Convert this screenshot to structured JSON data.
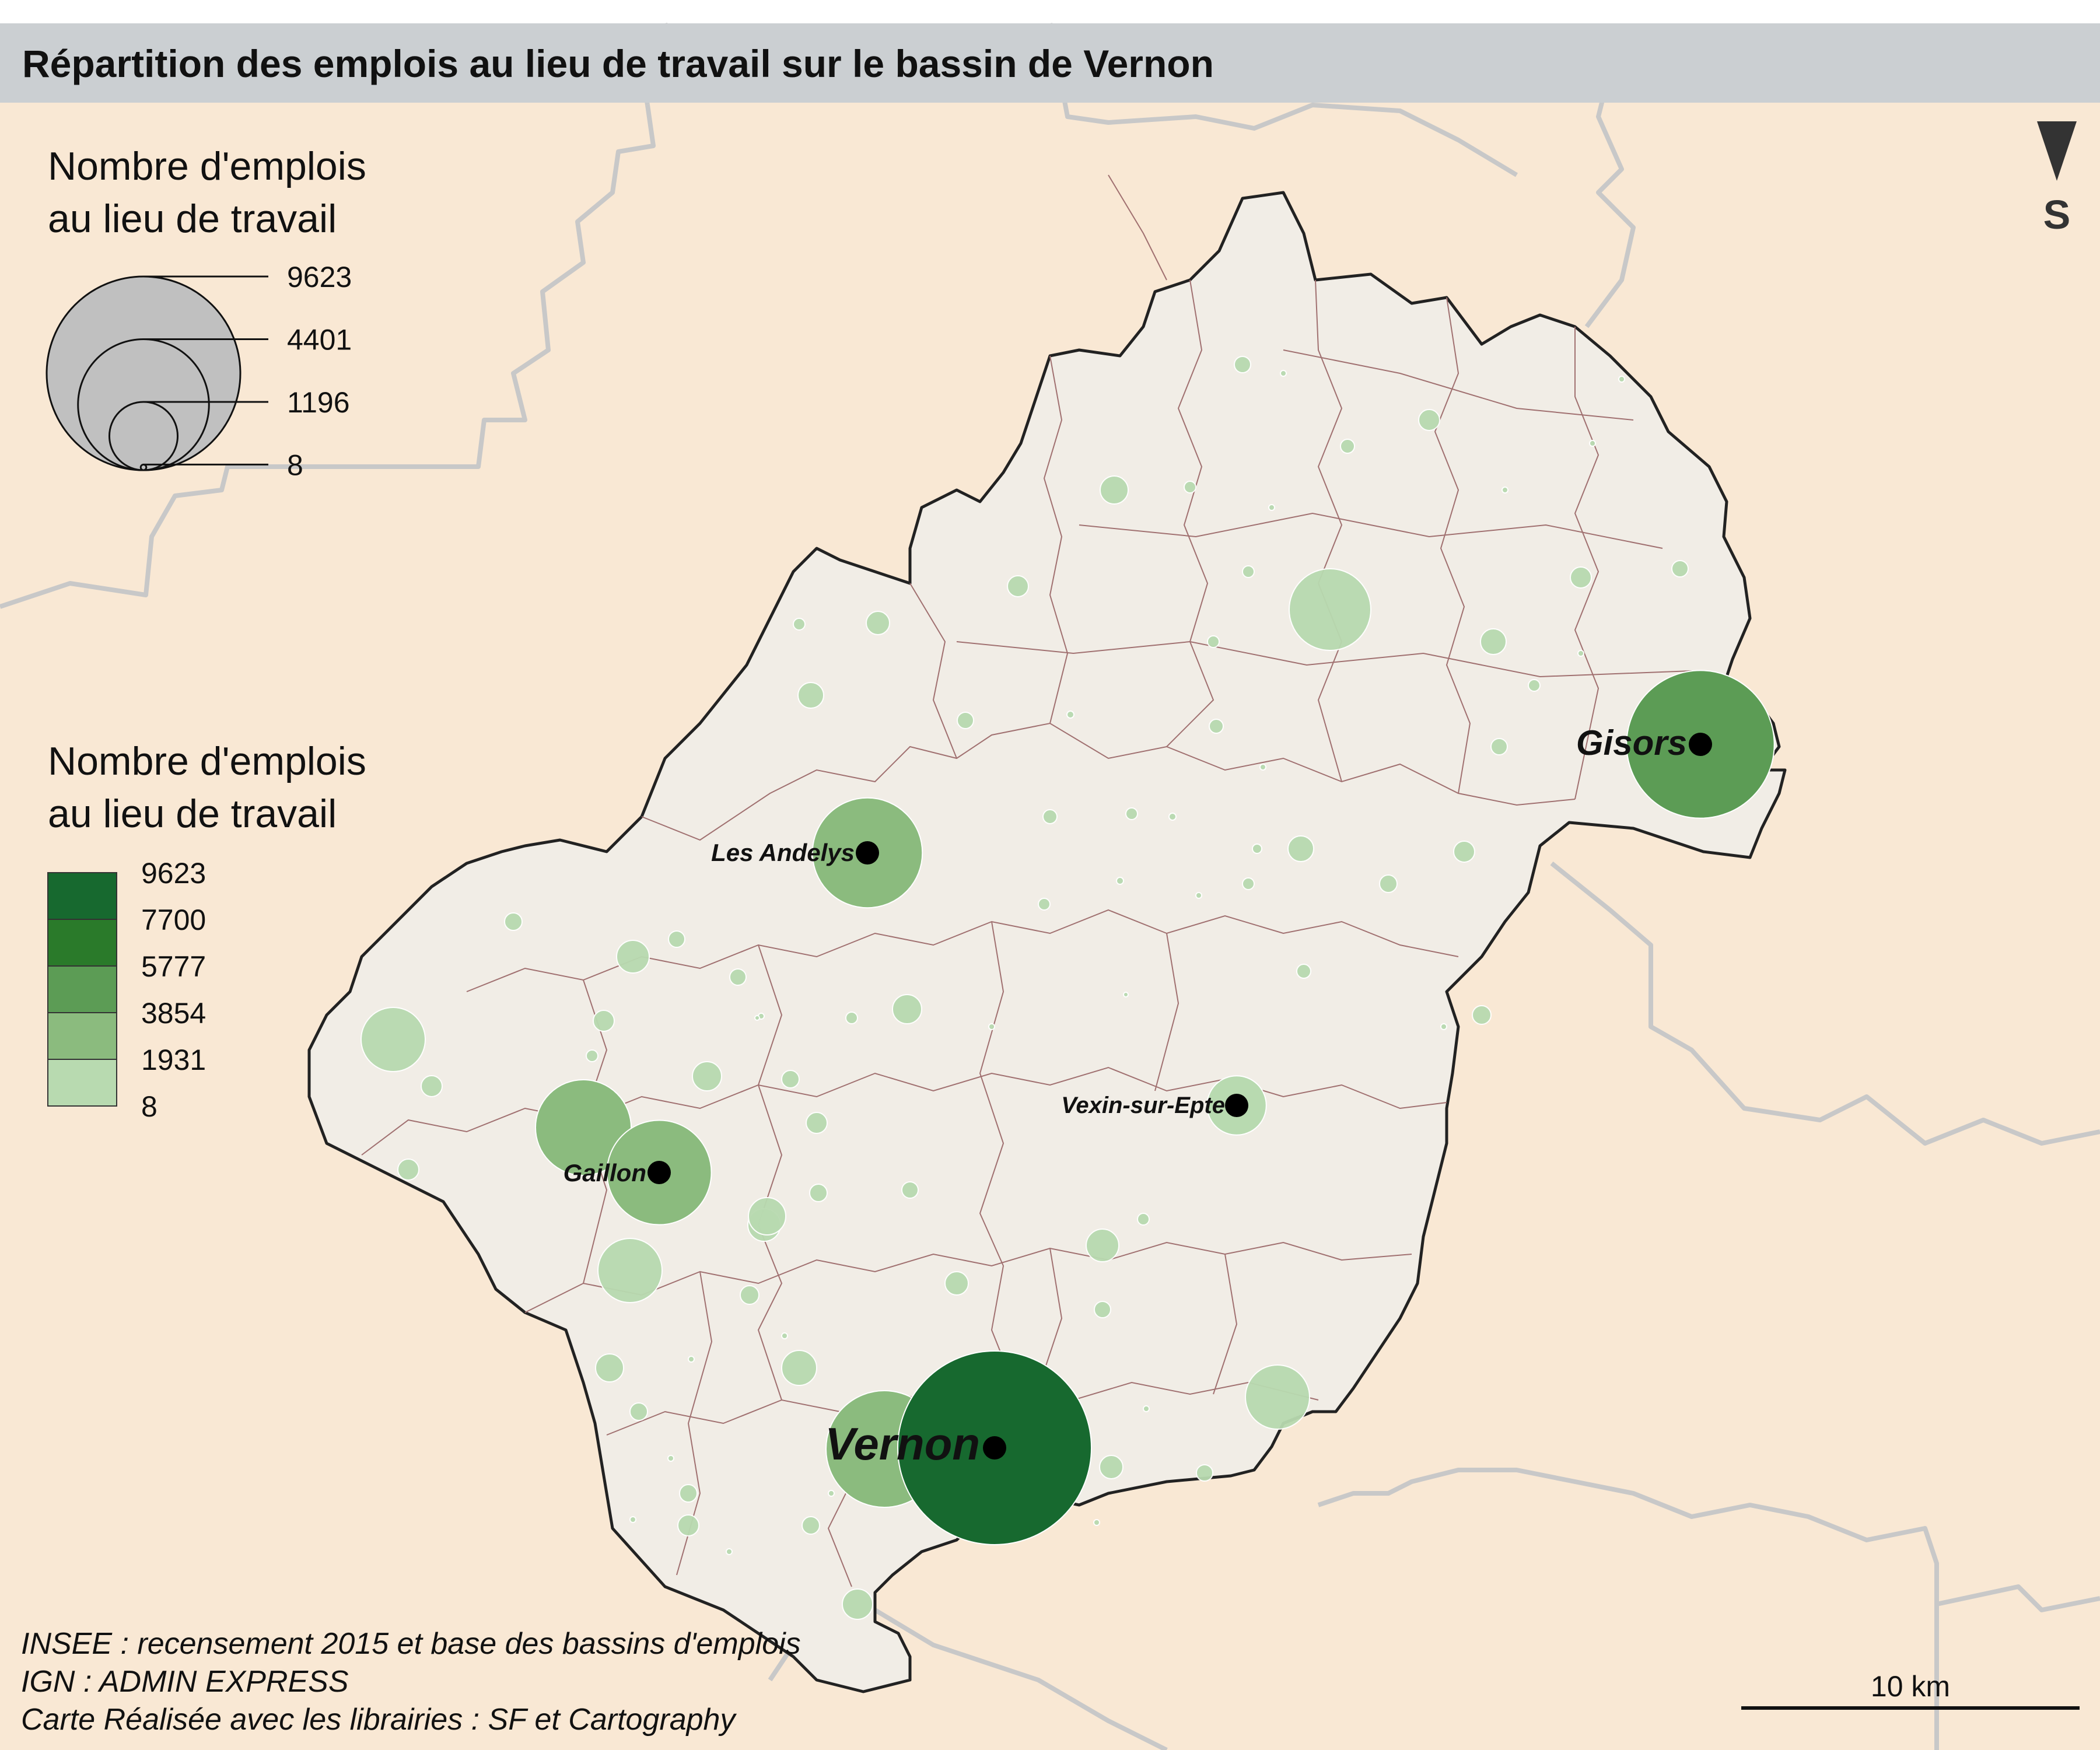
{
  "title": "Répartition des emplois au lieu de travail sur  le bassin de Vernon",
  "north_arrow": {
    "icon": "north-arrow-icon",
    "label": "S"
  },
  "size_legend": {
    "title_line1": "Nombre d'emplois",
    "title_line2": "au lieu de travail",
    "values": [
      9623,
      4401,
      1196,
      8
    ],
    "labels": [
      "9623",
      "4401",
      "1196",
      "8"
    ]
  },
  "color_legend": {
    "title_line1": "Nombre d'emplois",
    "title_line2": "au lieu de travail",
    "breaks": [
      "9623",
      "7700",
      "5777",
      "3854",
      "1931",
      "8"
    ],
    "colors": [
      "#17692f",
      "#2a7a2a",
      "#5c9c55",
      "#8bbb7e",
      "#b8dab0"
    ]
  },
  "cities": [
    {
      "name": "Vernon",
      "jobs": 9623
    },
    {
      "name": "Gisors",
      "jobs": 5600
    },
    {
      "name": "Les Andelys",
      "jobs": 3100
    },
    {
      "name": "Gaillon",
      "jobs": 2800
    },
    {
      "name": "Vexin-sur-Epte",
      "jobs": 900
    }
  ],
  "scale_bar": {
    "label": "10 km"
  },
  "sources": [
    "INSEE : recensement 2015 et base des bassins d'emplois",
    "IGN : ADMIN EXPRESS",
    "Carte Réalisée avec les librairies : SF et Cartography"
  ],
  "colors": {
    "background": "#f9e8d4",
    "region_fill": "#f1ede6",
    "region_border": "#222222",
    "commune_border": "#a07070",
    "dept_border": "#c8c8c8",
    "title_band": "#cbcfd2"
  }
}
